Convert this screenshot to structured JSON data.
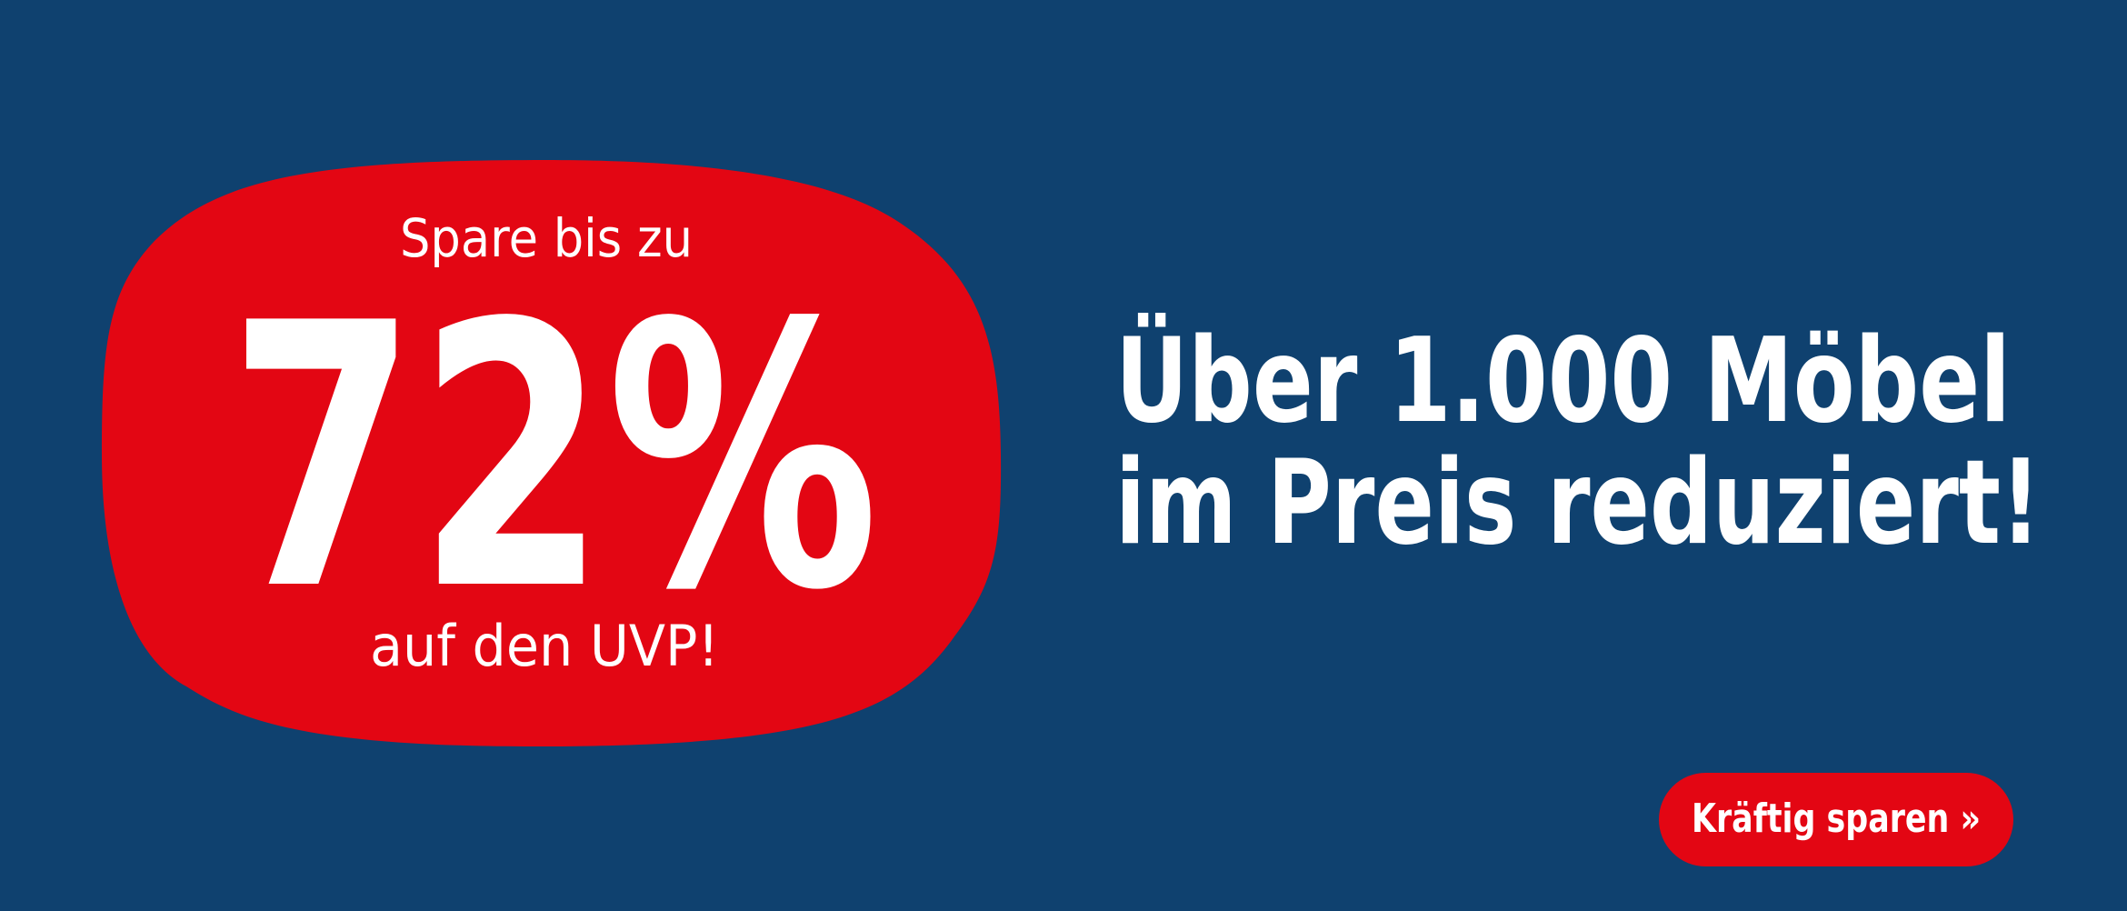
{
  "colors": {
    "background": "#0f416f",
    "accent": "#e30613",
    "text": "#ffffff"
  },
  "badge": {
    "top_line": "Spare bis zu",
    "percent": "72%",
    "bottom_line": "auf den UVP!"
  },
  "headline": {
    "line1": "Über 1.000 Möbel",
    "line2": "im Preis reduziert!"
  },
  "cta": {
    "label": "Kräftig sparen »"
  }
}
